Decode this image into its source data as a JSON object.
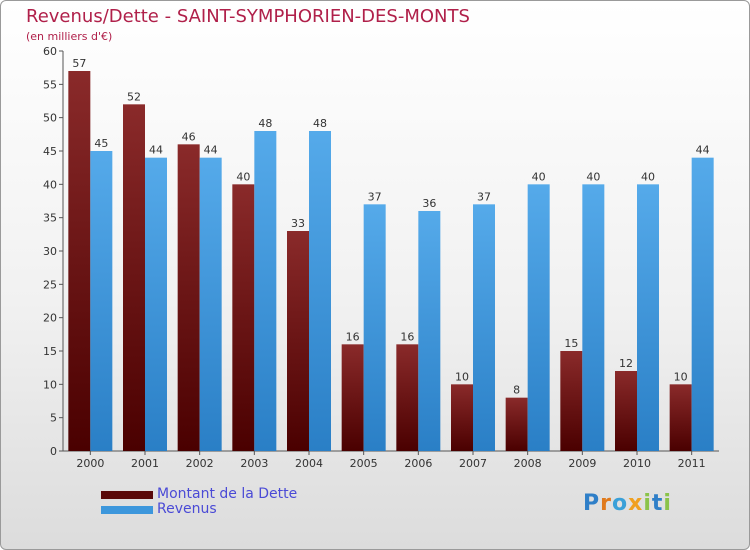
{
  "header": {
    "title": "Revenus/Dette - SAINT-SYMPHORIEN-DES-MONTS",
    "subtitle": "(en milliers d'€)"
  },
  "colors": {
    "dette": "#7a1616",
    "revenus": "#3d97dc",
    "title": "#b0204a"
  },
  "chart_data": {
    "type": "bar",
    "title": "Revenus/Dette - SAINT-SYMPHORIEN-DES-MONTS",
    "subtitle": "(en milliers d'€)",
    "categories": [
      "2000",
      "2001",
      "2002",
      "2003",
      "2004",
      "2005",
      "2006",
      "2007",
      "2008",
      "2009",
      "2010",
      "2011"
    ],
    "series": [
      {
        "name": "Montant de la Dette",
        "values": [
          57,
          52,
          46,
          40,
          33,
          16,
          16,
          10,
          8,
          15,
          12,
          10
        ]
      },
      {
        "name": "Revenus",
        "values": [
          45,
          44,
          44,
          48,
          48,
          37,
          36,
          37,
          40,
          40,
          40,
          44
        ]
      }
    ],
    "ylim": [
      0,
      60
    ],
    "yticks": [
      0,
      5,
      10,
      15,
      20,
      25,
      30,
      35,
      40,
      45,
      50,
      55,
      60
    ],
    "grid": false,
    "legend_position": "bottom-left",
    "data_labels": true
  },
  "legend": {
    "items": [
      {
        "label": "Montant de la Dette",
        "color": "#7a1616"
      },
      {
        "label": "Revenus",
        "color": "#3d97dc"
      }
    ]
  },
  "logo": {
    "text": "Proxiti"
  }
}
